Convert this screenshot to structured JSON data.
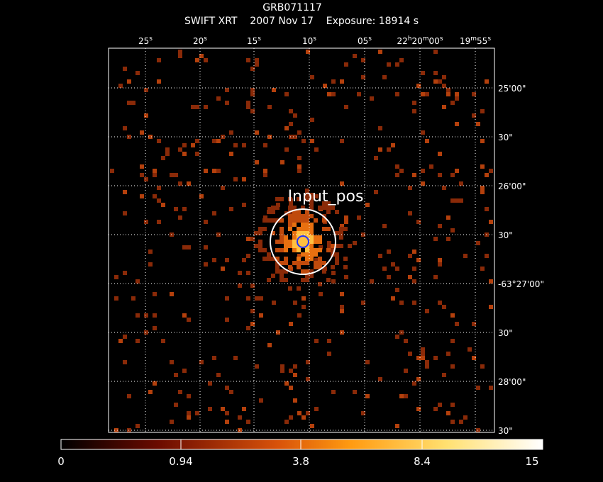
{
  "header": {
    "title": "GRB071117",
    "subtitle": "SWIFT XRT    2007 Nov 17    Exposure: 18914 s"
  },
  "image": {
    "ra_labels": [
      "25s",
      "20s",
      "15s",
      "10s",
      "05s",
      "22h20m00s",
      "19m55s"
    ],
    "dec_labels": [
      "25'00\"",
      "30\"",
      "26'00\"",
      "30\"",
      "-63°27'00\"",
      "30\"",
      "28'00\"",
      "30\""
    ],
    "marker_label": "Input_pos"
  },
  "colorbar": {
    "labels": [
      "0",
      "0.94",
      "3.8",
      "8.4",
      "15"
    ]
  }
}
